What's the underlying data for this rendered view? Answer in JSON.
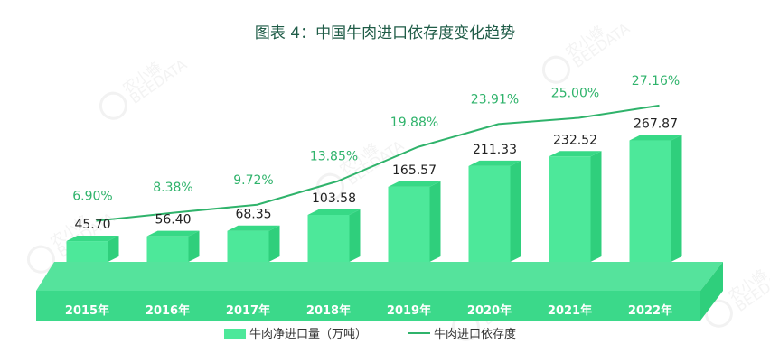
{
  "chart_data": {
    "type": "bar",
    "title": "图表 4：中国牛肉进口依存度变化趋势",
    "categories": [
      "2015年",
      "2016年",
      "2017年",
      "2018年",
      "2019年",
      "2020年",
      "2021年",
      "2022年"
    ],
    "series": [
      {
        "name": "牛肉净进口量（万吨）",
        "kind": "bar",
        "values": [
          45.7,
          56.4,
          68.35,
          103.58,
          165.57,
          211.33,
          232.52,
          267.87
        ],
        "labels": [
          "45.70",
          "56.40",
          "68.35",
          "103.58",
          "165.57",
          "211.33",
          "232.52",
          "267.87"
        ]
      },
      {
        "name": "牛肉进口依存度",
        "kind": "line",
        "values": [
          6.9,
          8.38,
          9.72,
          13.85,
          19.88,
          23.91,
          25.0,
          27.16
        ],
        "labels": [
          "6.90%",
          "8.38%",
          "9.72%",
          "13.85%",
          "19.88%",
          "23.91%",
          "25.00%",
          "27.16%"
        ]
      }
    ],
    "legend": "bottom",
    "grid": false,
    "colors": {
      "bar": "#4de89a",
      "bar_side": "#2fcf7c",
      "bar_top": "#37d986",
      "base": "#55e39c",
      "line": "#2fb36b"
    }
  },
  "watermark": {
    "brand": "农小蜂",
    "sub": "BEEDATA"
  }
}
